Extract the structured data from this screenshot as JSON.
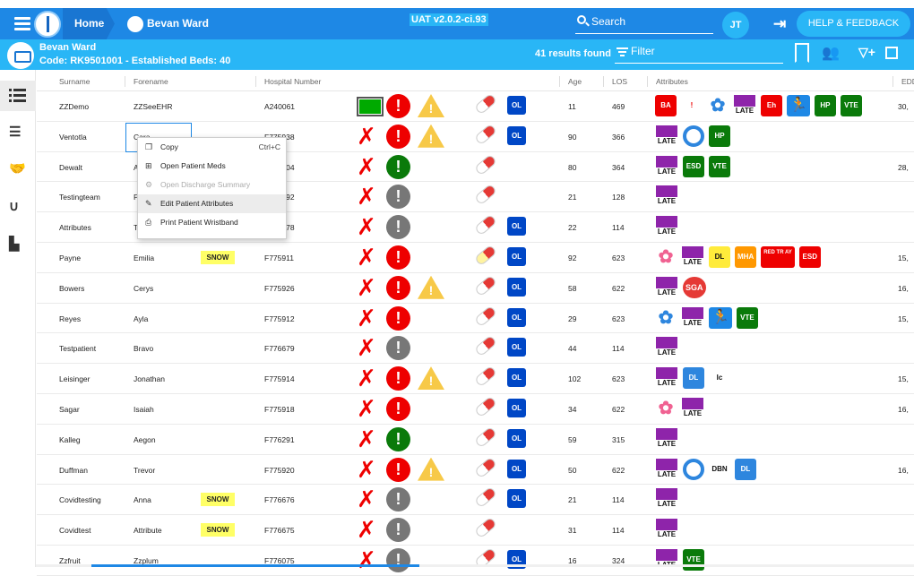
{
  "nav": {
    "home": "Home",
    "patient": "Bevan Ward",
    "version": "UAT v2.0.2-ci.93",
    "search": "Search",
    "avatar": "JT",
    "help": "HELP & FEEDBACK"
  },
  "banner": {
    "name": "Bevan Ward",
    "code": "Code: RK9501001 - Established Beds: 40",
    "results": "41 results found",
    "filter": "Filter"
  },
  "sidebar": [
    "list-icon",
    "checklist-icon",
    "handshake-icon",
    "stethoscope-icon",
    "staff-icon"
  ],
  "columns": {
    "surname": "Surname",
    "forename": "Forename",
    "hospital": "Hospital Number",
    "age": "Age",
    "los": "LOS",
    "attributes": "Attributes",
    "edd": "EDD"
  },
  "context_menu": [
    {
      "label": "Copy",
      "shortcut": "Ctrl+C",
      "icon": "copy-icon",
      "enabled": true
    },
    {
      "label": "Open Patient Meds",
      "shortcut": "",
      "icon": "plus-box-icon",
      "enabled": true
    },
    {
      "label": "Open Discharge Summary",
      "shortcut": "",
      "icon": "gears-icon",
      "enabled": false
    },
    {
      "label": "Edit Patient Attributes",
      "shortcut": "",
      "icon": "edit-icon",
      "enabled": true
    },
    {
      "label": "Print Patient Wristband",
      "shortcut": "",
      "icon": "print-icon",
      "enabled": true
    }
  ],
  "rows": [
    {
      "surname": "ZZDemo",
      "forename": "ZZSeeEHR",
      "snow": "",
      "hosp": "A240061",
      "age": "11",
      "los": "469",
      "status": "greenbar",
      "alert": "red",
      "warn": true,
      "pill": "red",
      "ol": "OL",
      "edd": "30,",
      "attrs": [
        [
          "red",
          "BA"
        ],
        [
          "white",
          "!"
        ],
        [
          "flower",
          ""
        ],
        [
          "late",
          ""
        ],
        [
          "red",
          "Eh"
        ],
        [
          "fall",
          ""
        ],
        [
          "grn",
          "HP"
        ],
        [
          "grn",
          "VTE"
        ]
      ]
    },
    {
      "surname": "Ventotla",
      "forename": "Cara",
      "snow": "",
      "hosp": "F775938",
      "age": "90",
      "los": "366",
      "status": "x",
      "alert": "red",
      "warn": true,
      "pill": "red",
      "ol": "OL",
      "edd": "",
      "attrs": [
        [
          "late",
          ""
        ],
        [
          "ring",
          ""
        ],
        [
          "grn",
          "HP"
        ]
      ]
    },
    {
      "surname": "Dewalt",
      "forename": "Alex",
      "snow": "",
      "hosp": "F776404",
      "age": "80",
      "los": "364",
      "status": "x",
      "alert": "green",
      "warn": false,
      "pill": "red",
      "ol": "",
      "edd": "28,",
      "attrs": [
        [
          "late",
          ""
        ],
        [
          "grn",
          "ESD"
        ],
        [
          "grn",
          "VTE"
        ]
      ]
    },
    {
      "surname": "Testingteam",
      "forename": "Paul",
      "snow": "",
      "hosp": "F776592",
      "age": "21",
      "los": "128",
      "status": "x",
      "alert": "grey",
      "warn": false,
      "pill": "red",
      "ol": "",
      "edd": "",
      "attrs": [
        [
          "late",
          ""
        ]
      ]
    },
    {
      "surname": "Attributes",
      "forename": "Test",
      "snow": "",
      "hosp": "F776678",
      "age": "22",
      "los": "114",
      "status": "x",
      "alert": "grey",
      "warn": false,
      "pill": "red",
      "ol": "OL",
      "edd": "",
      "attrs": [
        [
          "late",
          ""
        ]
      ]
    },
    {
      "surname": "Payne",
      "forename": "Emilia",
      "snow": "SNOW",
      "hosp": "F775911",
      "age": "92",
      "los": "623",
      "status": "x",
      "alert": "red",
      "warn": false,
      "pill": "yellow",
      "ol": "OL",
      "edd": "15,",
      "attrs": [
        [
          "flowerpink",
          ""
        ],
        [
          "late",
          ""
        ],
        [
          "yel",
          "DL"
        ],
        [
          "org",
          "MHA"
        ],
        [
          "rt",
          "RED TR AY"
        ],
        [
          "red",
          "ESD"
        ]
      ]
    },
    {
      "surname": "Bowers",
      "forename": "Cerys",
      "snow": "",
      "hosp": "F775926",
      "age": "58",
      "los": "622",
      "status": "x",
      "alert": "red",
      "warn": true,
      "pill": "red",
      "ol": "OL",
      "edd": "16,",
      "attrs": [
        [
          "late",
          ""
        ],
        [
          "sga",
          "SGA"
        ]
      ]
    },
    {
      "surname": "Reyes",
      "forename": "Ayla",
      "snow": "",
      "hosp": "F775912",
      "age": "29",
      "los": "623",
      "status": "x",
      "alert": "red",
      "warn": false,
      "pill": "red",
      "ol": "OL",
      "edd": "15,",
      "attrs": [
        [
          "flower",
          ""
        ],
        [
          "late",
          ""
        ],
        [
          "fall",
          ""
        ],
        [
          "grn",
          "VTE"
        ]
      ]
    },
    {
      "surname": "Testpatient",
      "forename": "Bravo",
      "snow": "",
      "hosp": "F776679",
      "age": "44",
      "los": "114",
      "status": "x",
      "alert": "grey",
      "warn": false,
      "pill": "red",
      "ol": "OL",
      "edd": "",
      "attrs": [
        [
          "late",
          ""
        ]
      ]
    },
    {
      "surname": "Leisinger",
      "forename": "Jonathan",
      "snow": "",
      "hosp": "F775914",
      "age": "102",
      "los": "623",
      "status": "x",
      "alert": "red",
      "warn": true,
      "pill": "red",
      "ol": "OL",
      "edd": "15,",
      "attrs": [
        [
          "late",
          ""
        ],
        [
          "blu",
          "DL"
        ],
        [
          "txt",
          "Ic"
        ]
      ]
    },
    {
      "surname": "Sagar",
      "forename": "Isaiah",
      "snow": "",
      "hosp": "F775918",
      "age": "34",
      "los": "622",
      "status": "x",
      "alert": "red",
      "warn": false,
      "pill": "red",
      "ol": "OL",
      "edd": "16,",
      "attrs": [
        [
          "flowerpink",
          ""
        ],
        [
          "late",
          ""
        ]
      ]
    },
    {
      "surname": "Kalleg",
      "forename": "Aegon",
      "snow": "",
      "hosp": "F776291",
      "age": "59",
      "los": "315",
      "status": "x",
      "alert": "green",
      "warn": false,
      "pill": "red",
      "ol": "OL",
      "edd": "",
      "attrs": [
        [
          "late",
          ""
        ]
      ]
    },
    {
      "surname": "Duffman",
      "forename": "Trevor",
      "snow": "",
      "hosp": "F775920",
      "age": "50",
      "los": "622",
      "status": "x",
      "alert": "red",
      "warn": true,
      "pill": "red",
      "ol": "OL",
      "edd": "16,",
      "attrs": [
        [
          "late",
          ""
        ],
        [
          "ring",
          ""
        ],
        [
          "txt",
          "DBN"
        ],
        [
          "blu",
          "DL"
        ]
      ]
    },
    {
      "surname": "Covidtesting",
      "forename": "Anna",
      "snow": "SNOW",
      "hosp": "F776676",
      "age": "21",
      "los": "114",
      "status": "x",
      "alert": "grey",
      "warn": false,
      "pill": "red",
      "ol": "OL",
      "edd": "",
      "attrs": [
        [
          "late",
          ""
        ]
      ]
    },
    {
      "surname": "Covidtest",
      "forename": "Attribute",
      "snow": "SNOW",
      "hosp": "F776675",
      "age": "31",
      "los": "114",
      "status": "x",
      "alert": "grey",
      "warn": false,
      "pill": "red",
      "ol": "",
      "edd": "",
      "attrs": [
        [
          "late",
          ""
        ]
      ]
    },
    {
      "surname": "Zzfruit",
      "forename": "Zzplum",
      "snow": "",
      "hosp": "F776075",
      "age": "16",
      "los": "324",
      "status": "x",
      "alert": "grey",
      "warn": false,
      "pill": "red",
      "ol": "OL",
      "edd": "",
      "attrs": [
        [
          "late",
          ""
        ],
        [
          "grn",
          "VTE"
        ]
      ]
    }
  ],
  "late_label": "LATE"
}
